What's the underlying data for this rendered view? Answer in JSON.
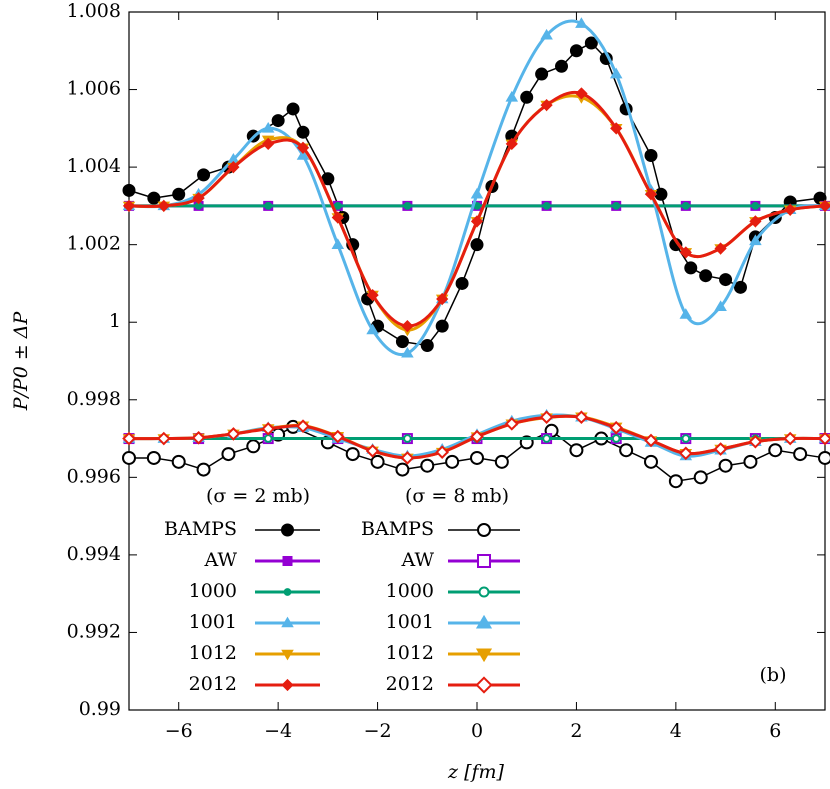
{
  "chart_data": {
    "type": "line",
    "xlabel": "z [fm]",
    "ylabel": "P/P0 ± ΔP",
    "annotation": "(b)",
    "legend_titles": [
      "(σ = 2 mb)",
      "(σ = 8 mb)"
    ],
    "xlim": [
      -7,
      7
    ],
    "ylim": [
      0.99,
      1.008
    ],
    "xticks": [
      {
        "value": -6,
        "label": "−6"
      },
      {
        "value": -4,
        "label": "−4"
      },
      {
        "value": -2,
        "label": "−2"
      },
      0,
      2,
      4,
      6
    ],
    "yticks": [
      0.99,
      0.992,
      0.994,
      0.996,
      0.998,
      1,
      1.002,
      1.004,
      1.006,
      1.008
    ],
    "series": [
      {
        "name": "BAMPS",
        "color": "#000000",
        "marker": "circle",
        "open": false,
        "smooth": false,
        "x": [
          -7,
          -6.5,
          -6,
          -5.5,
          -5,
          -4.5,
          -4,
          -3.7,
          -3.5,
          -3,
          -2.7,
          -2.5,
          -2.2,
          -2,
          -1.5,
          -1,
          -0.7,
          -0.3,
          0,
          0.3,
          0.7,
          1,
          1.3,
          1.7,
          2,
          2.3,
          2.6,
          3,
          3.5,
          3.7,
          4,
          4.3,
          4.6,
          5,
          5.3,
          5.6,
          6,
          6.3,
          6.9
        ],
        "values": [
          1.0034,
          1.0032,
          1.0033,
          1.0038,
          1.004,
          1.0048,
          1.0052,
          1.0055,
          1.0049,
          1.0037,
          1.0027,
          1.002,
          1.0006,
          0.9999,
          0.9995,
          0.9994,
          0.9999,
          1.001,
          1.002,
          1.0035,
          1.0048,
          1.0058,
          1.0064,
          1.0066,
          1.007,
          1.0072,
          1.0068,
          1.0055,
          1.0043,
          1.0033,
          1.002,
          1.0014,
          1.0012,
          1.0011,
          1.0009,
          1.0022,
          1.0027,
          1.0031,
          1.0032
        ]
      },
      {
        "name": "AW",
        "color": "#9400d3",
        "marker": "square",
        "open": false,
        "smooth": true,
        "x": [
          -7,
          -5.6,
          -4.2,
          -2.8,
          -1.4,
          0,
          1.4,
          2.8,
          4.2,
          5.6,
          7
        ],
        "values": [
          1.003,
          1.003,
          1.003,
          1.003,
          1.003,
          1.003,
          1.003,
          1.003,
          1.003,
          1.003,
          1.003
        ]
      },
      {
        "name": "1000",
        "color": "#009e73",
        "marker": "dot",
        "open": false,
        "smooth": true,
        "x": [
          -7,
          -5.6,
          -4.2,
          -2.8,
          -1.4,
          0,
          1.4,
          2.8,
          4.2,
          5.6,
          7
        ],
        "values": [
          1.003,
          1.003,
          1.003,
          1.003,
          1.003,
          1.003,
          1.003,
          1.003,
          1.003,
          1.003,
          1.003
        ]
      },
      {
        "name": "1001",
        "color": "#56b4e9",
        "marker": "triangle",
        "open": false,
        "smooth": true,
        "x": [
          -7,
          -6.3,
          -5.6,
          -4.9,
          -4.2,
          -3.5,
          -2.8,
          -2.1,
          -1.4,
          -0.7,
          0,
          0.7,
          1.4,
          2.1,
          2.8,
          3.5,
          4.2,
          4.9,
          5.6,
          6.3,
          7
        ],
        "values": [
          1.003,
          1.003,
          1.0033,
          1.0042,
          1.005,
          1.0043,
          1.002,
          0.9998,
          0.9992,
          1.0006,
          1.0033,
          1.0058,
          1.0074,
          1.0077,
          1.0064,
          1.0034,
          1.0002,
          1.0004,
          1.0021,
          1.0029,
          1.003
        ]
      },
      {
        "name": "1012",
        "color": "#e69f00",
        "marker": "triangle-down",
        "open": false,
        "smooth": true,
        "x": [
          -7,
          -6.3,
          -5.6,
          -4.9,
          -4.2,
          -3.5,
          -2.8,
          -2.1,
          -1.4,
          -0.7,
          0,
          0.7,
          1.4,
          2.1,
          2.8,
          3.5,
          4.2,
          4.9,
          5.6,
          6.3,
          7
        ],
        "values": [
          1.003,
          1.003,
          1.0032,
          1.004,
          1.0047,
          1.0045,
          1.0027,
          1.0007,
          0.9998,
          1.0006,
          1.0026,
          1.0046,
          1.0056,
          1.0058,
          1.005,
          1.0033,
          1.0018,
          1.0019,
          1.0026,
          1.0029,
          1.003
        ]
      },
      {
        "name": "2012",
        "color": "#e51e10",
        "marker": "diamond",
        "open": false,
        "smooth": true,
        "x": [
          -7,
          -6.3,
          -5.6,
          -4.9,
          -4.2,
          -3.5,
          -2.8,
          -2.1,
          -1.4,
          -0.7,
          0,
          0.7,
          1.4,
          2.1,
          2.8,
          3.5,
          4.2,
          4.9,
          5.6,
          6.3,
          7
        ],
        "values": [
          1.003,
          1.003,
          1.0032,
          1.004,
          1.0046,
          1.0045,
          1.0027,
          1.0007,
          0.9999,
          1.0006,
          1.0026,
          1.0046,
          1.0056,
          1.0059,
          1.005,
          1.0033,
          1.0018,
          1.0019,
          1.0026,
          1.0029,
          1.003
        ]
      },
      {
        "name": "BAMPS",
        "color": "#000000",
        "marker": "circle",
        "open": true,
        "smooth": false,
        "x": [
          -7,
          -6.5,
          -6,
          -5.5,
          -5,
          -4.5,
          -4,
          -3.7,
          -3,
          -2.5,
          -2,
          -1.5,
          -1,
          -0.5,
          0,
          0.5,
          1,
          1.5,
          2,
          2.5,
          3,
          3.5,
          4,
          4.5,
          5,
          5.5,
          6,
          6.5,
          7
        ],
        "values": [
          0.9965,
          0.9965,
          0.9964,
          0.9962,
          0.9966,
          0.9968,
          0.9971,
          0.9973,
          0.9969,
          0.9966,
          0.9964,
          0.9962,
          0.9963,
          0.9964,
          0.9965,
          0.9964,
          0.9969,
          0.9972,
          0.9967,
          0.997,
          0.9967,
          0.9964,
          0.9959,
          0.996,
          0.9963,
          0.9964,
          0.9967,
          0.9966,
          0.9965
        ]
      },
      {
        "name": "AW",
        "color": "#9400d3",
        "marker": "square",
        "open": true,
        "smooth": true,
        "x": [
          -7,
          -5.6,
          -4.2,
          -2.8,
          -1.4,
          0,
          1.4,
          2.8,
          4.2,
          5.6,
          7
        ],
        "values": [
          0.997,
          0.997,
          0.997,
          0.997,
          0.997,
          0.997,
          0.997,
          0.997,
          0.997,
          0.997,
          0.997
        ]
      },
      {
        "name": "1000",
        "color": "#009e73",
        "marker": "dot",
        "open": true,
        "smooth": true,
        "x": [
          -7,
          -5.6,
          -4.2,
          -2.8,
          -1.4,
          0,
          1.4,
          2.8,
          4.2,
          5.6,
          7
        ],
        "values": [
          0.997,
          0.997,
          0.997,
          0.997,
          0.997,
          0.997,
          0.997,
          0.997,
          0.997,
          0.997,
          0.997
        ]
      },
      {
        "name": "1001",
        "color": "#56b4e9",
        "marker": "triangle",
        "open": false,
        "smooth": true,
        "x": [
          -7,
          -6.3,
          -5.6,
          -4.9,
          -4.2,
          -3.5,
          -2.8,
          -2.1,
          -1.4,
          -0.7,
          0,
          0.7,
          1.4,
          2.1,
          2.8,
          3.5,
          4.2,
          4.9,
          5.6,
          6.3,
          7
        ],
        "values": [
          0.997,
          0.997,
          0.99702,
          0.99712,
          0.99728,
          0.99728,
          0.997,
          0.99672,
          0.99655,
          0.99672,
          0.9971,
          0.99745,
          0.9976,
          0.99755,
          0.99725,
          0.9969,
          0.99655,
          0.9967,
          0.99692,
          0.997,
          0.997
        ]
      },
      {
        "name": "1012",
        "color": "#e69f00",
        "marker": "triangle-down",
        "open": false,
        "smooth": true,
        "x": [
          -7,
          -6.3,
          -5.6,
          -4.9,
          -4.2,
          -3.5,
          -2.8,
          -2.1,
          -1.4,
          -0.7,
          0,
          0.7,
          1.4,
          2.1,
          2.8,
          3.5,
          4.2,
          4.9,
          5.6,
          6.3,
          7
        ],
        "values": [
          0.997,
          0.997,
          0.99702,
          0.99712,
          0.99726,
          0.99733,
          0.99706,
          0.99668,
          0.9965,
          0.99665,
          0.99705,
          0.99738,
          0.99754,
          0.99756,
          0.9973,
          0.99695,
          0.99662,
          0.99673,
          0.99692,
          0.997,
          0.997
        ]
      },
      {
        "name": "2012",
        "color": "#e51e10",
        "marker": "diamond",
        "open": true,
        "smooth": true,
        "x": [
          -7,
          -6.3,
          -5.6,
          -4.9,
          -4.2,
          -3.5,
          -2.8,
          -2.1,
          -1.4,
          -0.7,
          0,
          0.7,
          1.4,
          2.1,
          2.8,
          3.5,
          4.2,
          4.9,
          5.6,
          6.3,
          7
        ],
        "values": [
          0.997,
          0.997,
          0.99702,
          0.99712,
          0.99725,
          0.99732,
          0.99705,
          0.99668,
          0.9965,
          0.99665,
          0.99705,
          0.99738,
          0.99755,
          0.99755,
          0.99728,
          0.99695,
          0.99662,
          0.99673,
          0.99692,
          0.997,
          0.997
        ]
      }
    ]
  }
}
